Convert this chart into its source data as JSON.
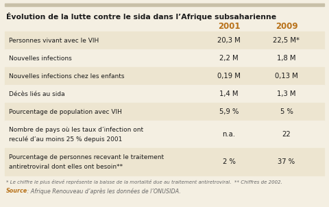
{
  "title": "Évolution de la lutte contre le sida dans l’Afrique subsaharienne",
  "col_2001": "2001",
  "col_2009": "2009",
  "rows": [
    {
      "label": "Personnes vivant avec le VIH",
      "val2001": "20,3 M",
      "val2009": "22,5 M*",
      "multiline": false
    },
    {
      "label": "Nouvelles infections",
      "val2001": "2,2 M",
      "val2009": "1,8 M",
      "multiline": false
    },
    {
      "label": "Nouvelles infections chez les enfants",
      "val2001": "0,19 M",
      "val2009": "0,13 M",
      "multiline": false
    },
    {
      "label": "Décès liés au sida",
      "val2001": "1,4 M",
      "val2009": "1,3 M",
      "multiline": false
    },
    {
      "label": "Pourcentage de population avec VIH",
      "val2001": "5,9 %",
      "val2009": "5 %",
      "multiline": false
    },
    {
      "label_line1": "Nombre de pays où les taux d’infection ont",
      "label_line2": "reculé d’au moins 25 % depuis 2001",
      "val2001": "n.a.",
      "val2009": "22",
      "multiline": true
    },
    {
      "label_line1": "Pourcentage de personnes recevant le traitement",
      "label_line2": "antiretroviral dont elles ont besoin**",
      "val2001": "2 %",
      "val2009": "37 %",
      "multiline": true
    }
  ],
  "footnote_italic": "* Le chiffre le plus élevé représente la baisse de la mortalité due au traitement antiretroviral.  ** Chiffres de 2002.",
  "source_label": "Source",
  "source_rest": " : Afrique Renouveau d’après les données de l’ONUSIDA.",
  "bg_color": "#f4efe2",
  "stripe_light": "#ede5d0",
  "top_bar_color": "#c8c0a8",
  "title_color": "#1a1a1a",
  "header_color": "#b8721a",
  "data_color": "#1a1a1a",
  "footnote_color": "#666666",
  "source_color": "#b8721a"
}
